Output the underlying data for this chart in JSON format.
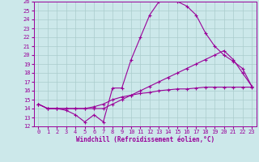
{
  "xlabel": "Windchill (Refroidissement éolien,°C)",
  "xlim": [
    -0.5,
    23.5
  ],
  "ylim": [
    12,
    26
  ],
  "xticks": [
    0,
    1,
    2,
    3,
    4,
    5,
    6,
    7,
    8,
    9,
    10,
    11,
    12,
    13,
    14,
    15,
    16,
    17,
    18,
    19,
    20,
    21,
    22,
    23
  ],
  "yticks": [
    12,
    13,
    14,
    15,
    16,
    17,
    18,
    19,
    20,
    21,
    22,
    23,
    24,
    25,
    26
  ],
  "bg_color": "#cce8ea",
  "grid_color": "#aacccc",
  "line_color": "#990099",
  "curve1_x": [
    0,
    1,
    2,
    3,
    4,
    5,
    6,
    7,
    8,
    9,
    10,
    11,
    12,
    13,
    14,
    15,
    16,
    17,
    18,
    19,
    20,
    21,
    22,
    23
  ],
  "curve1_y": [
    14.5,
    14.0,
    14.0,
    13.8,
    13.3,
    12.5,
    13.3,
    12.5,
    16.3,
    16.3,
    19.5,
    22.0,
    24.5,
    26.0,
    26.3,
    26.0,
    25.5,
    24.5,
    22.5,
    21.0,
    20.0,
    19.3,
    18.5,
    16.5
  ],
  "curve2_x": [
    0,
    1,
    2,
    3,
    4,
    5,
    6,
    7,
    8,
    9,
    10,
    11,
    12,
    13,
    14,
    15,
    16,
    17,
    18,
    19,
    20,
    21,
    22,
    23
  ],
  "curve2_y": [
    14.5,
    14.0,
    14.0,
    14.0,
    14.0,
    14.0,
    14.0,
    14.0,
    14.5,
    15.0,
    15.5,
    16.0,
    16.5,
    17.0,
    17.5,
    18.0,
    18.5,
    19.0,
    19.5,
    20.0,
    20.5,
    19.5,
    18.0,
    16.5
  ],
  "curve3_x": [
    0,
    1,
    2,
    3,
    4,
    5,
    6,
    7,
    8,
    9,
    10,
    11,
    12,
    13,
    14,
    15,
    16,
    17,
    18,
    19,
    20,
    21,
    22,
    23
  ],
  "curve3_y": [
    14.5,
    14.0,
    14.0,
    14.0,
    14.0,
    14.0,
    14.2,
    14.5,
    15.0,
    15.3,
    15.5,
    15.7,
    15.8,
    16.0,
    16.1,
    16.2,
    16.2,
    16.3,
    16.4,
    16.4,
    16.4,
    16.4,
    16.4,
    16.4
  ],
  "tick_fontsize": 5,
  "xlabel_fontsize": 5.5,
  "marker_size": 2.5,
  "linewidth": 0.8
}
